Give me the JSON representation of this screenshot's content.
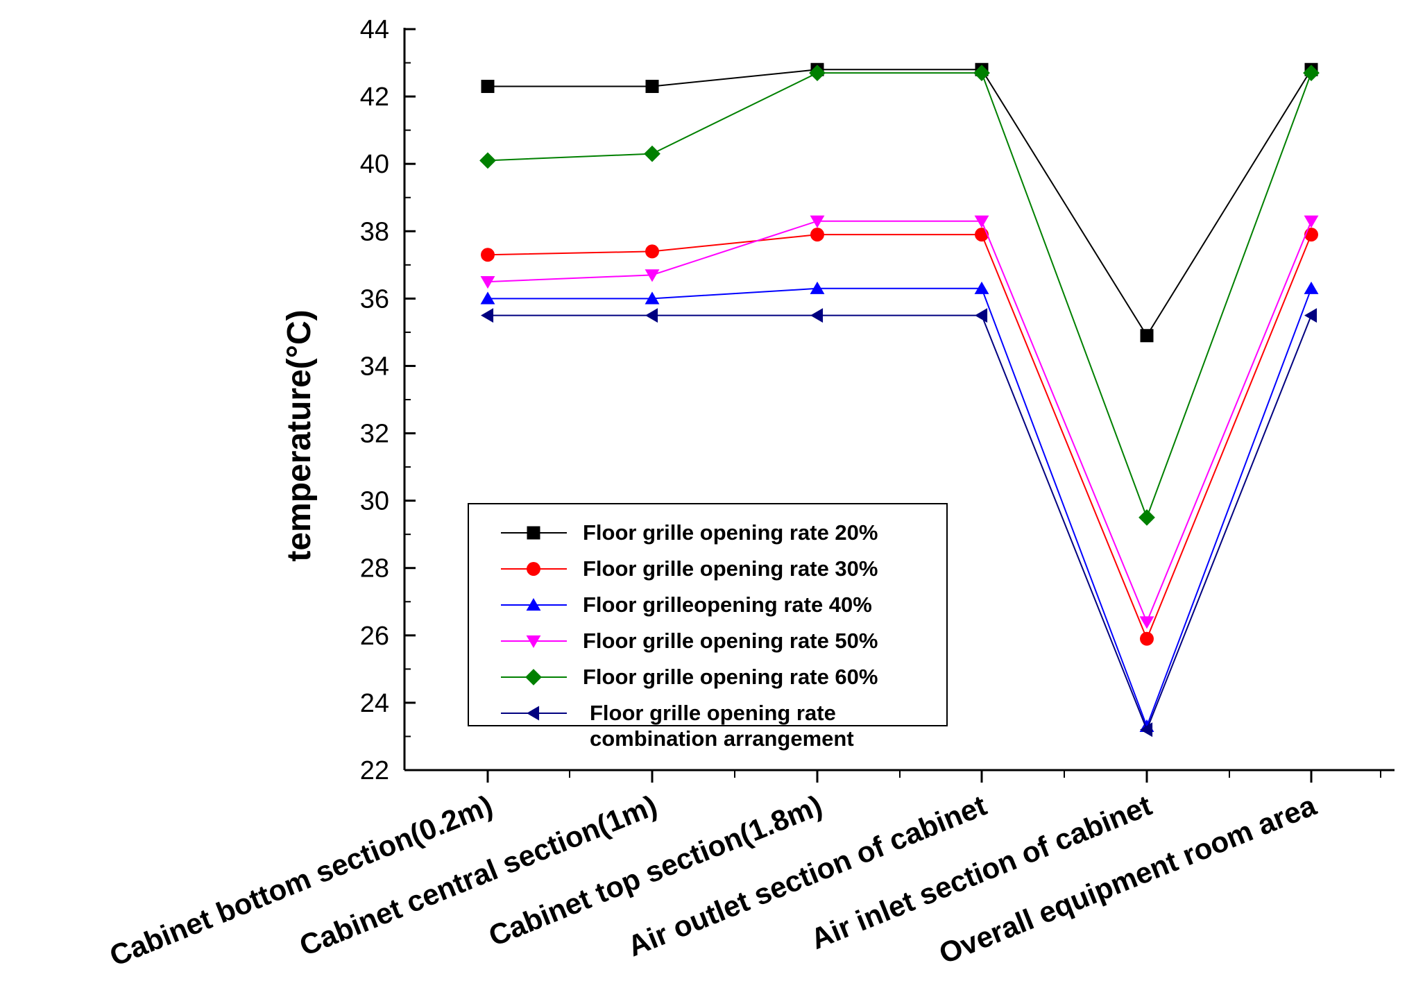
{
  "chart_data": {
    "type": "line",
    "title": "",
    "xlabel": "",
    "ylabel": "temperature(°C)",
    "ylim": [
      22,
      44
    ],
    "yticks": [
      "22",
      "24",
      "26",
      "28",
      "30",
      "32",
      "34",
      "36",
      "38",
      "40",
      "42",
      "44"
    ],
    "grid": false,
    "legend_position": "lower-left",
    "categories": [
      "Cabinet bottom section(0.2m)",
      "Cabinet central section(1m)",
      "Cabinet top section(1.8m)",
      "Air outlet section of cabinet",
      "Air inlet section of cabinet",
      "Overall equipment room area"
    ],
    "series": [
      {
        "name": "Floor grille opening rate 20%",
        "color": "#000000",
        "marker": "square",
        "values": [
          42.3,
          42.3,
          42.8,
          42.8,
          34.9,
          42.8
        ]
      },
      {
        "name": "Floor grille opening rate 30%",
        "color": "#ff0000",
        "marker": "circle",
        "values": [
          37.3,
          37.4,
          37.9,
          37.9,
          25.9,
          37.9
        ]
      },
      {
        "name": "Floor grilleopening rate 40%",
        "color": "#0000ff",
        "marker": "triangle-up",
        "values": [
          36.0,
          36.0,
          36.3,
          36.3,
          23.3,
          36.3
        ]
      },
      {
        "name": "Floor grille opening rate 50%",
        "color": "#ff00ff",
        "marker": "triangle-down",
        "values": [
          36.5,
          36.7,
          38.3,
          38.3,
          26.4,
          38.3
        ]
      },
      {
        "name": "Floor grille opening rate 60%",
        "color": "#008000",
        "marker": "diamond",
        "values": [
          40.1,
          40.3,
          42.7,
          42.7,
          29.5,
          42.7
        ]
      },
      {
        "name": "Floor grille opening rate combination arrangement",
        "legend_lines": [
          "Floor grille opening rate",
          "combination arrangement"
        ],
        "color": "#000080",
        "marker": "triangle-left",
        "values": [
          35.5,
          35.5,
          35.5,
          35.5,
          23.2,
          35.5
        ]
      }
    ]
  }
}
